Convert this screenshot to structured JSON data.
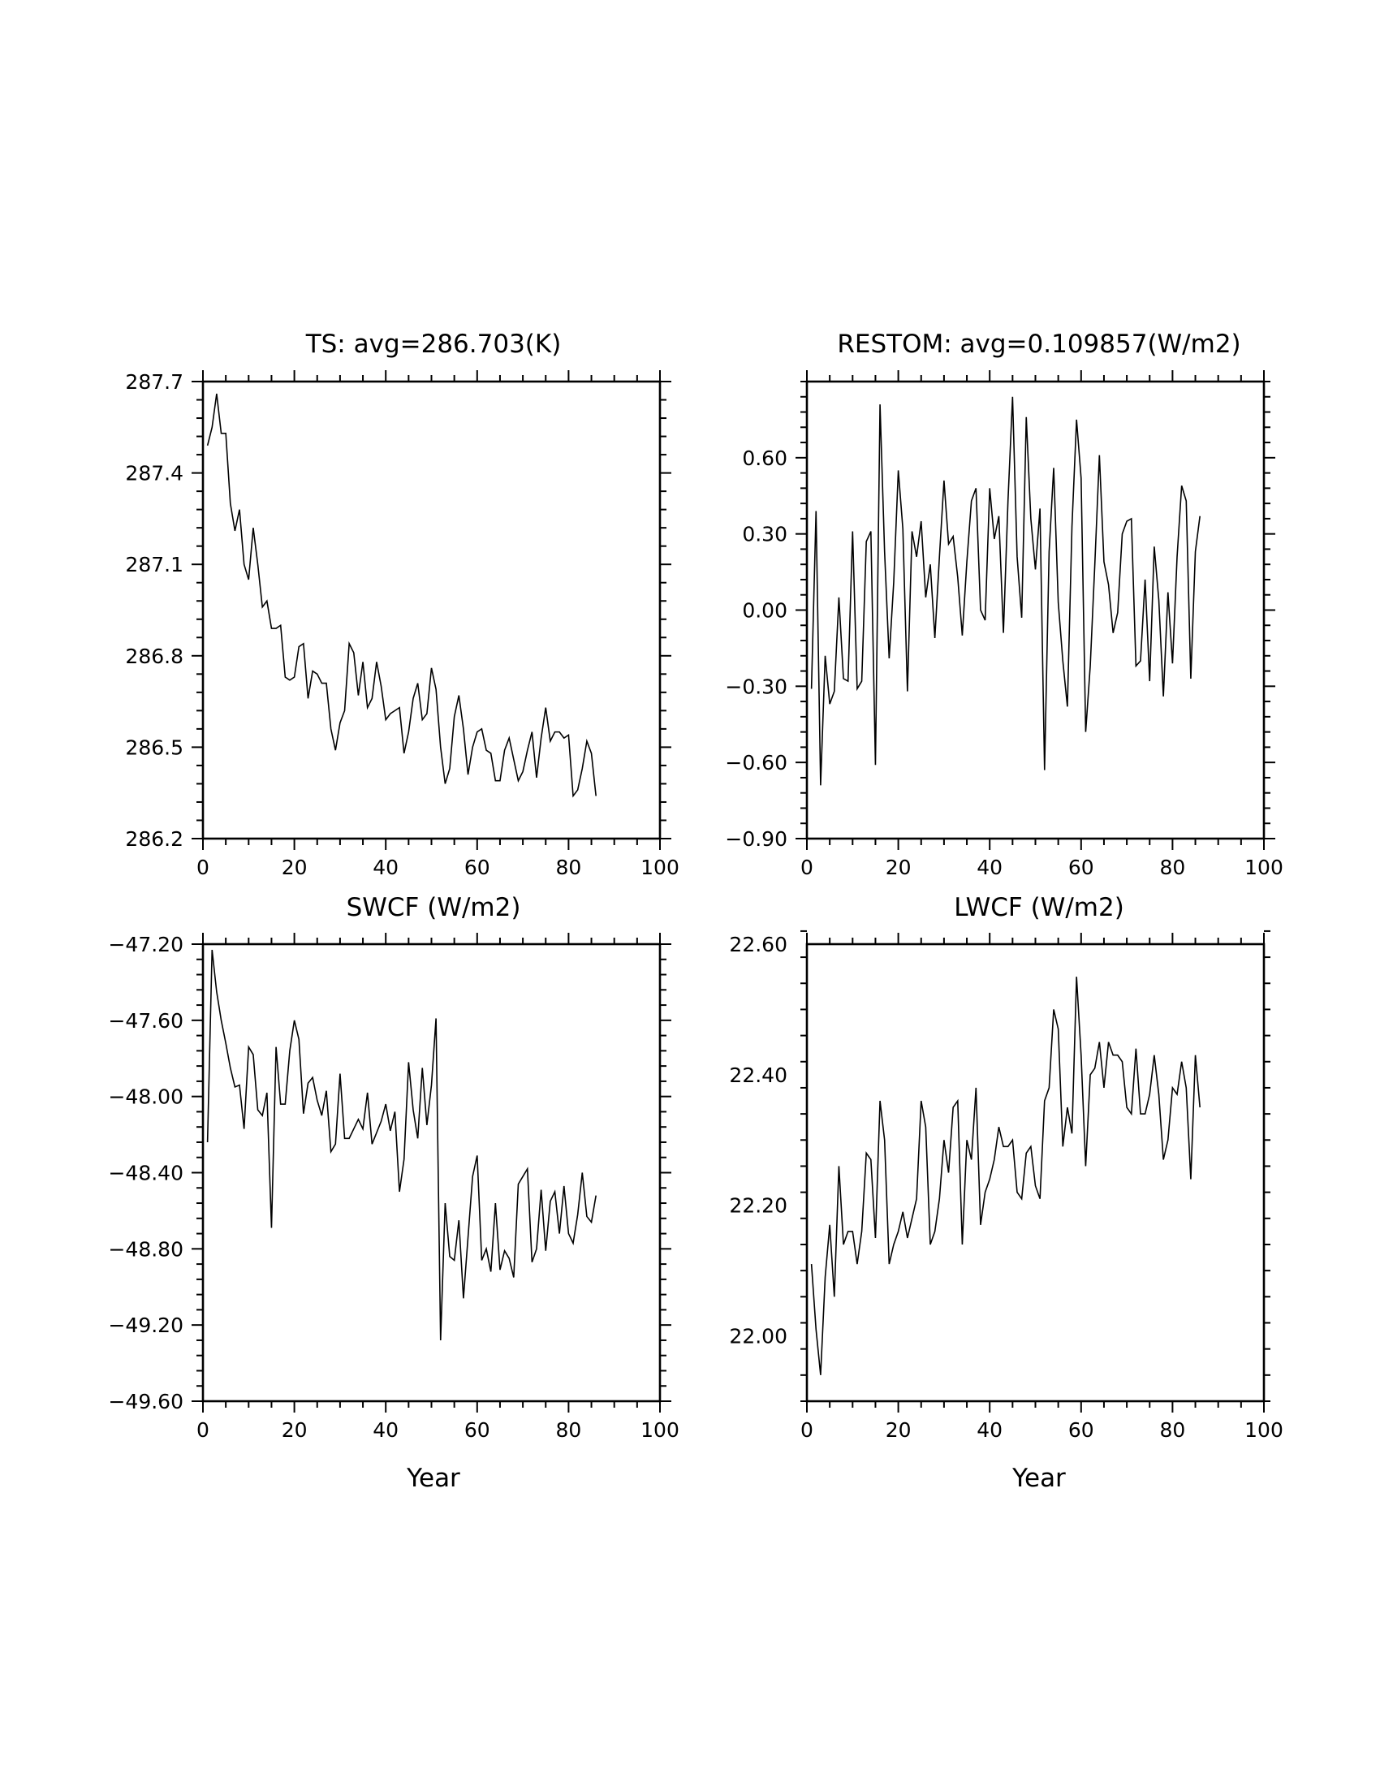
{
  "figure": {
    "background": "#ffffff",
    "ink": "#000000"
  },
  "chart_data": [
    {
      "id": "ts",
      "type": "line",
      "title": "TS: avg=286.703(K)",
      "xlabel": "",
      "ylabel": "",
      "xlim": [
        0,
        100
      ],
      "ylim": [
        286.2,
        287.7
      ],
      "xticks": [
        0,
        20,
        40,
        60,
        80,
        100
      ],
      "xticklabels": [
        "0",
        "20",
        "40",
        "60",
        "80",
        "100"
      ],
      "yticks": [
        286.2,
        286.5,
        286.8,
        287.1,
        287.4,
        287.7
      ],
      "yticklabels": [
        "286.2",
        "286.5",
        "286.8",
        "287.1",
        "287.4",
        "287.7"
      ],
      "x_start": 1,
      "values": [
        287.49,
        287.55,
        287.66,
        287.53,
        287.53,
        287.3,
        287.21,
        287.28,
        287.1,
        287.05,
        287.22,
        287.1,
        286.96,
        286.98,
        286.89,
        286.89,
        286.9,
        286.73,
        286.72,
        286.73,
        286.83,
        286.84,
        286.66,
        286.75,
        286.74,
        286.71,
        286.71,
        286.56,
        286.49,
        286.58,
        286.62,
        286.84,
        286.81,
        286.67,
        286.78,
        286.63,
        286.66,
        286.78,
        286.7,
        286.59,
        286.61,
        286.62,
        286.63,
        286.48,
        286.55,
        286.66,
        286.71,
        286.59,
        286.61,
        286.76,
        286.69,
        286.5,
        286.38,
        286.43,
        286.6,
        286.67,
        286.56,
        286.41,
        286.5,
        286.55,
        286.56,
        286.49,
        286.48,
        286.39,
        286.39,
        286.49,
        286.53,
        286.46,
        286.39,
        286.42,
        286.49,
        286.55,
        286.4,
        286.53,
        286.63,
        286.52,
        286.55,
        286.55,
        286.53,
        286.54,
        286.34,
        286.36,
        286.43,
        286.52,
        286.48,
        286.34
      ]
    },
    {
      "id": "restom",
      "type": "line",
      "title": "RESTOM: avg=0.109857(W/m2)",
      "xlabel": "",
      "ylabel": "",
      "xlim": [
        0,
        100
      ],
      "ylim": [
        -0.9,
        0.9
      ],
      "xticks": [
        0,
        20,
        40,
        60,
        80,
        100
      ],
      "xticklabels": [
        "0",
        "20",
        "40",
        "60",
        "80",
        "100"
      ],
      "yticks": [
        -0.9,
        -0.6,
        -0.3,
        0.0,
        0.3,
        0.6
      ],
      "yticklabels": [
        "−0.90",
        "−0.60",
        "−0.30",
        "0.00",
        "0.30",
        "0.60"
      ],
      "x_start": 1,
      "values": [
        -0.31,
        0.39,
        -0.69,
        -0.18,
        -0.37,
        -0.32,
        0.05,
        -0.27,
        -0.28,
        0.31,
        -0.31,
        -0.28,
        0.27,
        0.31,
        -0.61,
        0.81,
        0.23,
        -0.19,
        0.11,
        0.55,
        0.32,
        -0.32,
        0.31,
        0.21,
        0.35,
        0.05,
        0.18,
        -0.11,
        0.21,
        0.51,
        0.26,
        0.29,
        0.13,
        -0.1,
        0.19,
        0.43,
        0.48,
        0.0,
        -0.04,
        0.48,
        0.28,
        0.37,
        -0.09,
        0.43,
        0.84,
        0.21,
        -0.03,
        0.76,
        0.36,
        0.16,
        0.4,
        -0.63,
        0.23,
        0.56,
        0.03,
        -0.2,
        -0.38,
        0.33,
        0.75,
        0.52,
        -0.48,
        -0.22,
        0.18,
        0.61,
        0.19,
        0.1,
        -0.09,
        -0.01,
        0.3,
        0.35,
        0.36,
        -0.22,
        -0.2,
        0.12,
        -0.28,
        0.25,
        0.04,
        -0.34,
        0.07,
        -0.21,
        0.21,
        0.49,
        0.43,
        -0.27,
        0.23,
        0.37
      ]
    },
    {
      "id": "swcf",
      "type": "line",
      "title": "SWCF (W/m2)",
      "xlabel": "Year",
      "ylabel": "",
      "xlim": [
        0,
        100
      ],
      "ylim": [
        -49.6,
        -47.2
      ],
      "xticks": [
        0,
        20,
        40,
        60,
        80,
        100
      ],
      "xticklabels": [
        "0",
        "20",
        "40",
        "60",
        "80",
        "100"
      ],
      "yticks": [
        -49.6,
        -49.2,
        -48.8,
        -48.4,
        -48.0,
        -47.6,
        -47.2
      ],
      "yticklabels": [
        "−49.60",
        "−49.20",
        "−48.80",
        "−48.40",
        "−48.00",
        "−47.60",
        "−47.20"
      ],
      "x_start": 1,
      "values": [
        -48.24,
        -47.23,
        -47.45,
        -47.6,
        -47.72,
        -47.85,
        -47.95,
        -47.94,
        -48.17,
        -47.74,
        -47.78,
        -48.07,
        -48.1,
        -47.98,
        -48.69,
        -47.74,
        -48.04,
        -48.04,
        -47.76,
        -47.6,
        -47.7,
        -48.09,
        -47.93,
        -47.9,
        -48.02,
        -48.1,
        -47.97,
        -48.29,
        -48.25,
        -47.88,
        -48.22,
        -48.22,
        -48.17,
        -48.12,
        -48.17,
        -47.98,
        -48.25,
        -48.19,
        -48.13,
        -48.04,
        -48.18,
        -48.08,
        -48.5,
        -48.33,
        -47.82,
        -48.07,
        -48.22,
        -47.85,
        -48.15,
        -47.94,
        -47.59,
        -49.28,
        -48.56,
        -48.84,
        -48.86,
        -48.65,
        -49.06,
        -48.74,
        -48.42,
        -48.31,
        -48.86,
        -48.8,
        -48.92,
        -48.56,
        -48.91,
        -48.81,
        -48.85,
        -48.95,
        -48.46,
        -48.42,
        -48.38,
        -48.87,
        -48.8,
        -48.49,
        -48.81,
        -48.55,
        -48.5,
        -48.72,
        -48.47,
        -48.72,
        -48.77,
        -48.62,
        -48.4,
        -48.63,
        -48.66,
        -48.52
      ]
    },
    {
      "id": "lwcf",
      "type": "line",
      "title": "LWCF (W/m2)",
      "xlabel": "Year",
      "ylabel": "",
      "xlim": [
        0,
        100
      ],
      "ylim": [
        21.9,
        22.6
      ],
      "xticks": [
        0,
        20,
        40,
        60,
        80,
        100
      ],
      "xticklabels": [
        "0",
        "20",
        "40",
        "60",
        "80",
        "100"
      ],
      "yticks": [
        22.0,
        22.2,
        22.4,
        22.6
      ],
      "yticklabels": [
        "22.00",
        "22.20",
        "22.40",
        "22.60"
      ],
      "x_start": 1,
      "values": [
        22.11,
        22.01,
        21.94,
        22.09,
        22.17,
        22.06,
        22.26,
        22.14,
        22.16,
        22.16,
        22.11,
        22.16,
        22.28,
        22.27,
        22.15,
        22.36,
        22.3,
        22.11,
        22.14,
        22.16,
        22.19,
        22.15,
        22.18,
        22.21,
        22.36,
        22.32,
        22.14,
        22.16,
        22.21,
        22.3,
        22.25,
        22.35,
        22.36,
        22.14,
        22.3,
        22.27,
        22.38,
        22.17,
        22.22,
        22.24,
        22.27,
        22.32,
        22.29,
        22.29,
        22.3,
        22.22,
        22.21,
        22.28,
        22.29,
        22.23,
        22.21,
        22.36,
        22.38,
        22.5,
        22.47,
        22.29,
        22.35,
        22.31,
        22.55,
        22.43,
        22.26,
        22.4,
        22.41,
        22.45,
        22.38,
        22.45,
        22.43,
        22.43,
        22.42,
        22.35,
        22.34,
        22.44,
        22.34,
        22.34,
        22.37,
        22.43,
        22.37,
        22.27,
        22.3,
        22.38,
        22.37,
        22.42,
        22.38,
        22.24,
        22.43,
        22.35
      ]
    }
  ]
}
